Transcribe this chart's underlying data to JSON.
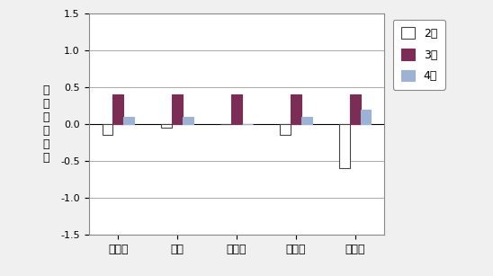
{
  "categories": [
    "三重県",
    "津市",
    "桑名市",
    "伊賀市",
    "尾鷲市"
  ],
  "series": {
    "2月": [
      -0.15,
      -0.05,
      0.0,
      -0.15,
      -0.6
    ],
    "3月": [
      0.4,
      0.4,
      0.4,
      0.4,
      0.4
    ],
    "4月": [
      0.1,
      0.1,
      0.0,
      0.1,
      0.2
    ]
  },
  "colors": {
    "2月": "#ffffff",
    "3月": "#7b2d55",
    "4月": "#9db3d4"
  },
  "edge_colors": {
    "2月": "#444444",
    "3月": "#7b2d55",
    "4月": "#9db3d4"
  },
  "ylabel": "対\n前\n月\n上\n昇\n率",
  "ylim": [
    -1.5,
    1.5
  ],
  "yticks": [
    -1.5,
    -1.0,
    -0.5,
    0.0,
    0.5,
    1.0,
    1.5
  ],
  "ytick_labels": [
    "-1.5",
    "-1.0",
    "-0.5",
    "0.0",
    "0.5",
    "1.0",
    "1.5"
  ],
  "legend_labels": [
    "2月",
    "3月",
    "4月"
  ],
  "background_color": "#f0f0f0",
  "plot_bg_color": "#ffffff",
  "bar_width": 0.18,
  "grid_color": "#aaaaaa"
}
